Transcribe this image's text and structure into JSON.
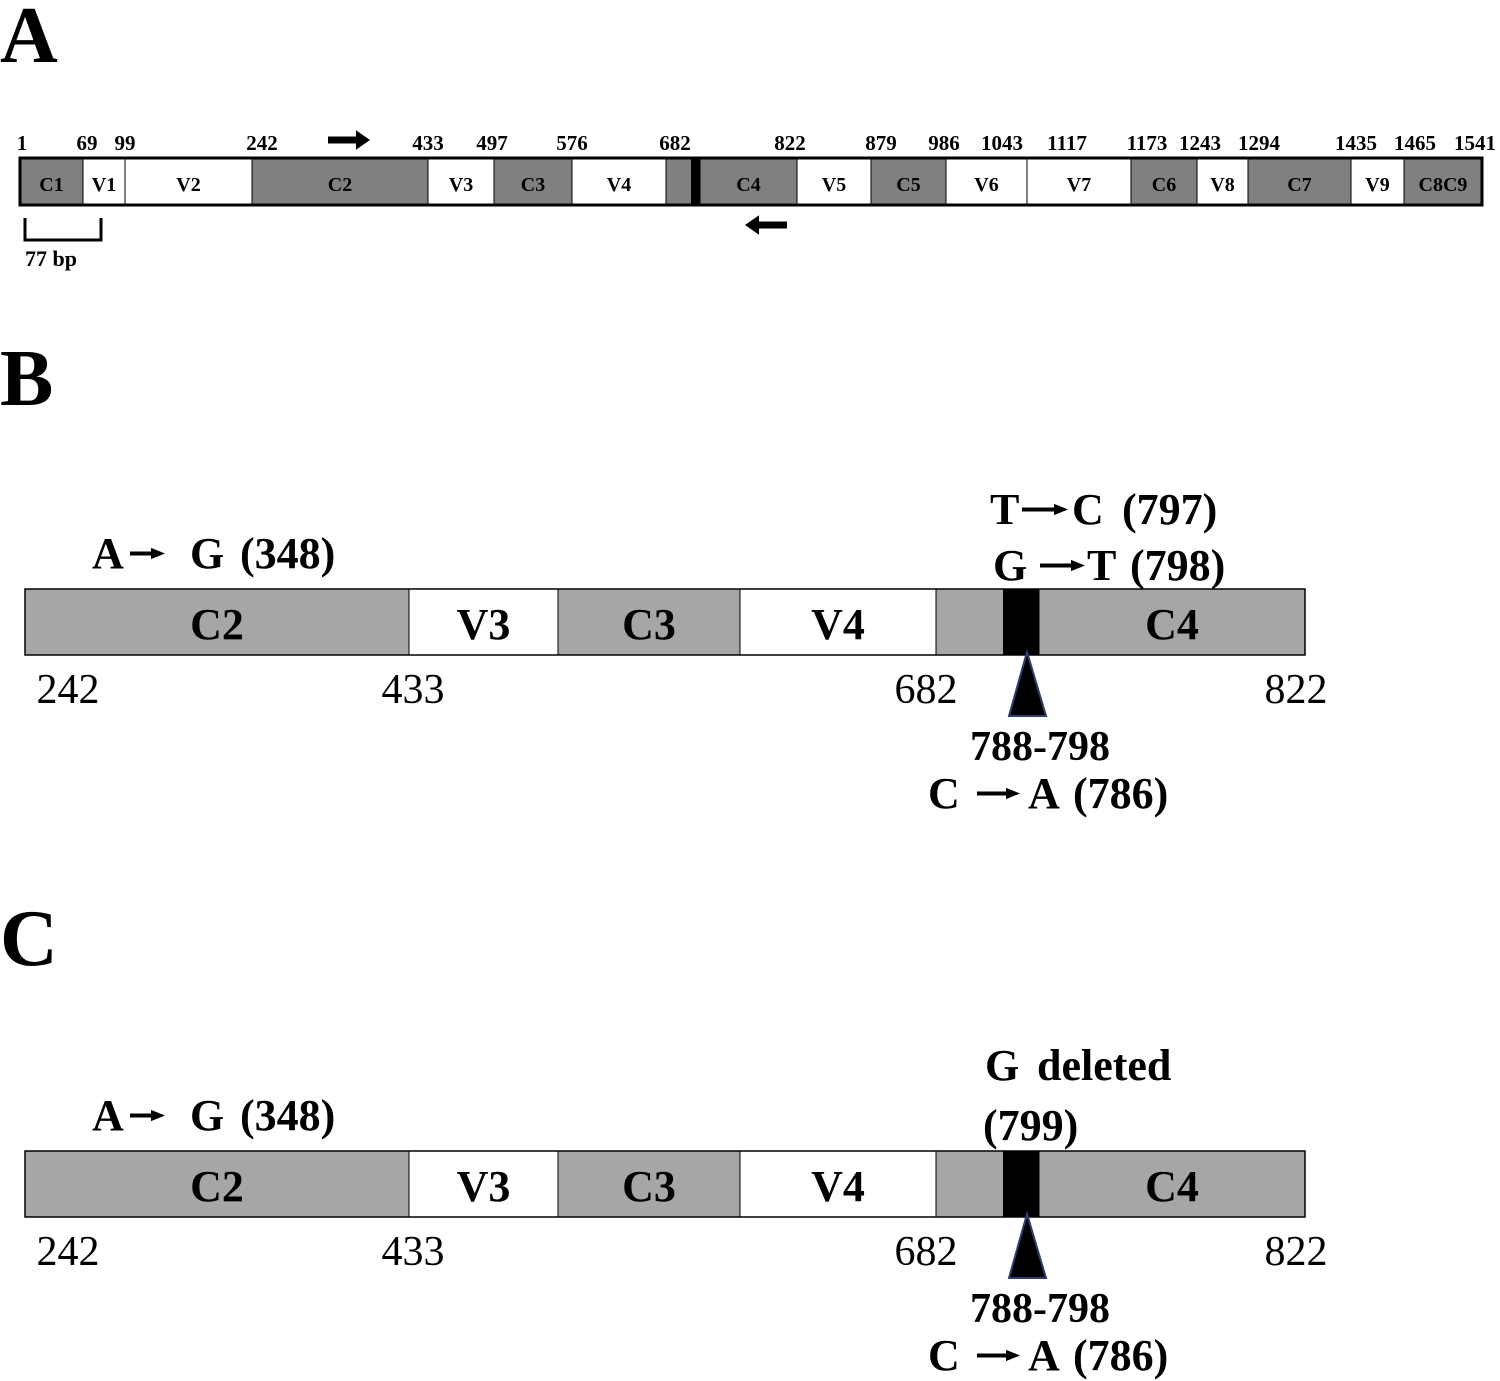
{
  "panels": [
    {
      "label": "A",
      "positions": [
        1,
        69,
        99,
        242,
        433,
        497,
        576,
        682,
        822,
        879,
        986,
        1043,
        1117,
        1173,
        1243,
        1294,
        1435,
        1465,
        1541
      ],
      "segments": [
        "C1",
        "V1",
        "V2",
        "C2",
        "V3",
        "C3",
        "V4",
        "C4",
        "V5",
        "C5",
        "V6",
        "V7",
        "C6",
        "V8",
        "C7",
        "V9",
        "C8C9"
      ],
      "scale_label": "77 bp"
    },
    {
      "label": "B",
      "segments": [
        "C2",
        "V3",
        "C3",
        "V4",
        "C4"
      ],
      "positions": [
        242,
        433,
        682,
        822
      ],
      "mutations": [
        {
          "from": "A",
          "to": "G",
          "position": "(348)"
        },
        {
          "from": "T",
          "to": "C",
          "position": "(797)"
        },
        {
          "from": "G",
          "to": "T",
          "position": "(798)"
        },
        {
          "from": "C",
          "to": "A",
          "position": "(786)"
        }
      ],
      "region": "788-798"
    },
    {
      "label": "C",
      "segments": [
        "C2",
        "V3",
        "C3",
        "V4",
        "C4"
      ],
      "positions": [
        242,
        433,
        682,
        822
      ],
      "mutations": [
        {
          "from": "A",
          "to": "G",
          "position": "(348)"
        },
        {
          "from": "C",
          "to": "A",
          "position": "(786)"
        }
      ],
      "deletion": {
        "base": "G",
        "text": "deleted",
        "position": "(799)"
      },
      "region": "788-798"
    }
  ]
}
